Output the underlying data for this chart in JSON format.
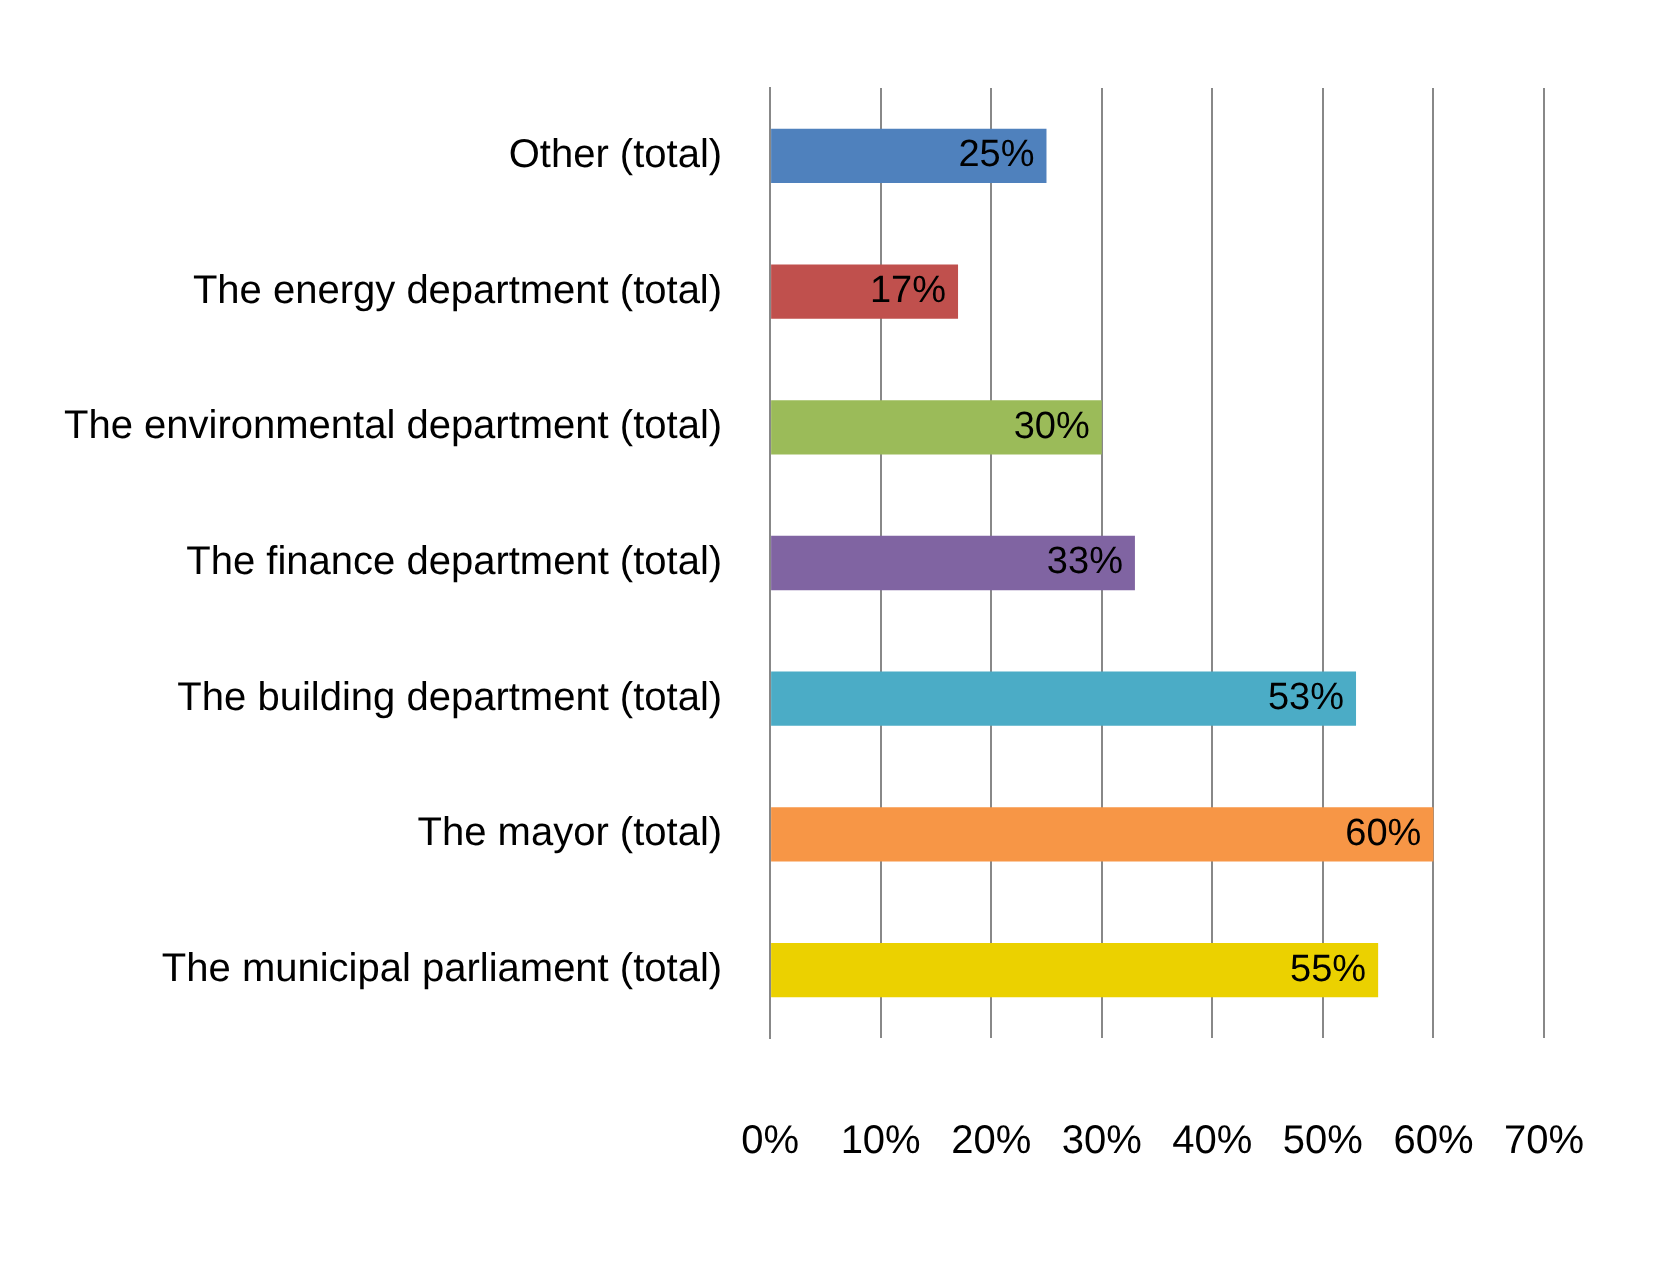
{
  "chart_data": {
    "type": "bar",
    "orientation": "horizontal",
    "categories": [
      "Other (total)",
      "The energy department (total)",
      "The environmental department (total)",
      "The finance department (total)",
      "The building department (total)",
      "The mayor (total)",
      "The municipal parliament (total)"
    ],
    "values": [
      25,
      17,
      30,
      33,
      53,
      60,
      55
    ],
    "colors": [
      "#4f81bd",
      "#c0504d",
      "#9bbb59",
      "#8064a2",
      "#4bacc6",
      "#f79646",
      "#ebd100"
    ],
    "xlim": [
      0,
      70
    ],
    "xticks": [
      {
        "value": 0,
        "label": "0%"
      },
      {
        "value": 10,
        "label": "10%"
      },
      {
        "value": 20,
        "label": "20%"
      },
      {
        "value": 30,
        "label": "30%"
      },
      {
        "value": 40,
        "label": "40%"
      },
      {
        "value": 50,
        "label": "50%"
      },
      {
        "value": 60,
        "label": "60%"
      },
      {
        "value": 70,
        "label": "70%"
      }
    ],
    "value_labels": [
      "25%",
      "17%",
      "30%",
      "33%",
      "53%",
      "60%",
      "55%"
    ],
    "grid": "x",
    "legend": false
  }
}
